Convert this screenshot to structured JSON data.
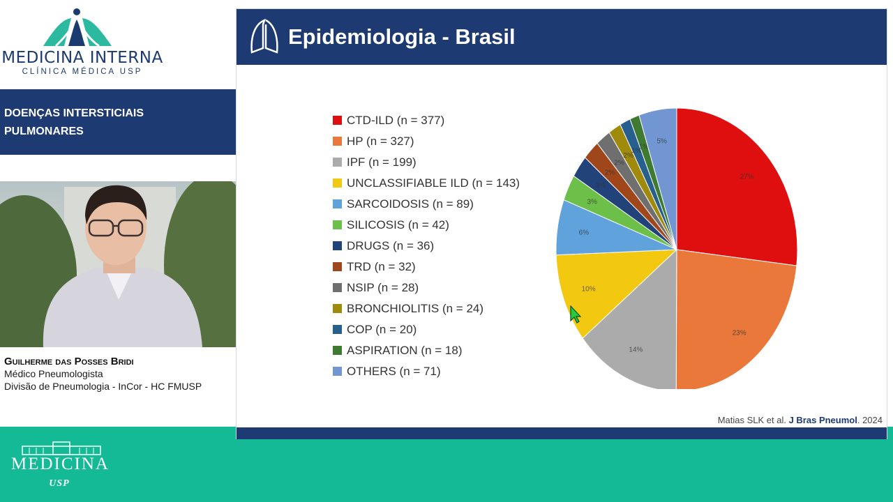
{
  "brand": {
    "title": "MEDICINA INTERNA",
    "subtitle": "CLÍNICA MÉDICA USP",
    "footer_name": "MEDICINA",
    "footer_usp": "USP"
  },
  "topic": {
    "line1": "Doenças Intersticiais",
    "line2": "Pulmonares"
  },
  "speaker": {
    "name": "Guilherme das Posses Bridi",
    "role": "Médico Pneumologista",
    "affiliation": "Divisão de Pneumologia - InCor - HC FMUSP"
  },
  "slide": {
    "title": "Epidemiologia - Brasil",
    "citation_authors": "Matias SLK et al. ",
    "citation_journal": "J Bras Pneumol",
    "citation_year": ". 2024"
  },
  "chart_data": {
    "type": "pie",
    "title": "",
    "categories": [
      "CTD-ILD",
      "HP",
      "IPF",
      "UNCLASSIFIABLE ILD",
      "SARCOIDOSIS",
      "SILICOSIS",
      "DRUGS",
      "TRD",
      "NSIP",
      "BRONCHIOLITIS",
      "COP",
      "ASPIRATION",
      "OTHERS"
    ],
    "legend_labels": [
      "CTD-ILD (n = 377)",
      "HP (n = 327)",
      "IPF (n = 199)",
      "UNCLASSIFIABLE ILD (n = 143)",
      "SARCOIDOSIS (n = 89)",
      "SILICOSIS (n = 42)",
      "DRUGS (n = 36)",
      "TRD (n = 32)",
      "NSIP (n = 28)",
      "BRONCHIOLITIS (n = 24)",
      "COP (n = 20)",
      "ASPIRATION (n = 18)",
      "OTHERS (n = 71)"
    ],
    "values": [
      377,
      327,
      199,
      143,
      89,
      42,
      36,
      32,
      28,
      24,
      20,
      18,
      71
    ],
    "percent_labels": [
      "27%",
      "23%",
      "14%",
      "10%",
      "6%",
      "3%",
      "3%",
      "2%",
      "2%",
      "2%",
      "1%",
      "1%",
      "5%"
    ],
    "colors": [
      "#e00f0f",
      "#e9783a",
      "#ababab",
      "#f2c811",
      "#5fa2dc",
      "#6cc04a",
      "#22427a",
      "#a0461b",
      "#6f6f6f",
      "#a08a0c",
      "#275f8f",
      "#3e7a30",
      "#7196d2"
    ],
    "legend_position": "left",
    "start_angle": "top, clockwise"
  }
}
